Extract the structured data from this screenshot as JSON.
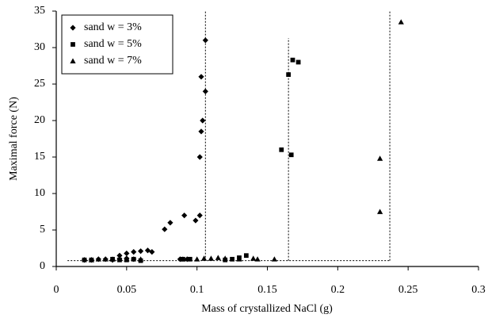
{
  "chart_data": {
    "type": "scatter",
    "xlabel": "Mass of crystallized NaCl (g)",
    "ylabel": "Maximal force (N)",
    "xlim": [
      0,
      0.3
    ],
    "xticks": [
      0,
      0.05,
      0.1,
      0.15,
      0.2,
      0.25,
      0.3
    ],
    "ylim": [
      0,
      35
    ],
    "yticks": [
      0,
      5,
      10,
      15,
      20,
      25,
      30,
      35
    ],
    "legend": "upper left",
    "series": [
      {
        "name": "sand w = 3%",
        "color": "#000000",
        "marker": "diamond",
        "x": [
          0.02,
          0.025,
          0.03,
          0.035,
          0.04,
          0.045,
          0.05,
          0.055,
          0.045,
          0.05,
          0.055,
          0.06,
          0.065,
          0.068,
          0.077,
          0.081,
          0.088,
          0.093,
          0.091,
          0.099,
          0.102,
          0.102,
          0.103,
          0.104,
          0.106,
          0.103,
          0.106
        ],
        "y": [
          0.9,
          0.9,
          1.0,
          1.0,
          0.9,
          1.0,
          1.1,
          1.0,
          1.5,
          1.8,
          2.0,
          2.1,
          2.2,
          2.0,
          5.1,
          6.0,
          1.0,
          1.0,
          7.0,
          6.3,
          7.0,
          15.0,
          18.5,
          20.0,
          24.0,
          26.0,
          31.0
        ]
      },
      {
        "name": "sand w = 5%",
        "color": "#000000",
        "marker": "square",
        "x": [
          0.02,
          0.025,
          0.04,
          0.045,
          0.05,
          0.055,
          0.06,
          0.09,
          0.095,
          0.12,
          0.125,
          0.13,
          0.135,
          0.16,
          0.167,
          0.165,
          0.168,
          0.172
        ],
        "y": [
          0.9,
          0.9,
          1.0,
          0.9,
          0.9,
          1.0,
          0.8,
          1.0,
          1.0,
          0.9,
          1.0,
          1.2,
          1.5,
          16.0,
          15.3,
          26.3,
          28.3,
          28.0
        ]
      },
      {
        "name": "sand w = 7%",
        "color": "#000000",
        "marker": "triangle",
        "x": [
          0.025,
          0.03,
          0.035,
          0.04,
          0.05,
          0.06,
          0.09,
          0.1,
          0.105,
          0.11,
          0.115,
          0.12,
          0.13,
          0.14,
          0.143,
          0.155,
          0.23,
          0.23,
          0.245
        ],
        "y": [
          0.9,
          1.0,
          1.0,
          1.0,
          1.0,
          1.0,
          1.0,
          1.0,
          1.1,
          1.1,
          1.2,
          1.1,
          1.0,
          1.1,
          1.0,
          1.0,
          14.8,
          7.5,
          33.5
        ]
      }
    ],
    "reference_lines": [
      {
        "x": [
          0.008,
          0.237
        ],
        "y": [
          0.8,
          0.8
        ]
      },
      {
        "x": [
          0.106,
          0.106
        ],
        "y": [
          0.8,
          35
        ]
      },
      {
        "x": [
          0.165,
          0.165
        ],
        "y": [
          0.8,
          31.3
        ]
      },
      {
        "x": [
          0.237,
          0.237
        ],
        "y": [
          0.8,
          35
        ]
      }
    ]
  }
}
